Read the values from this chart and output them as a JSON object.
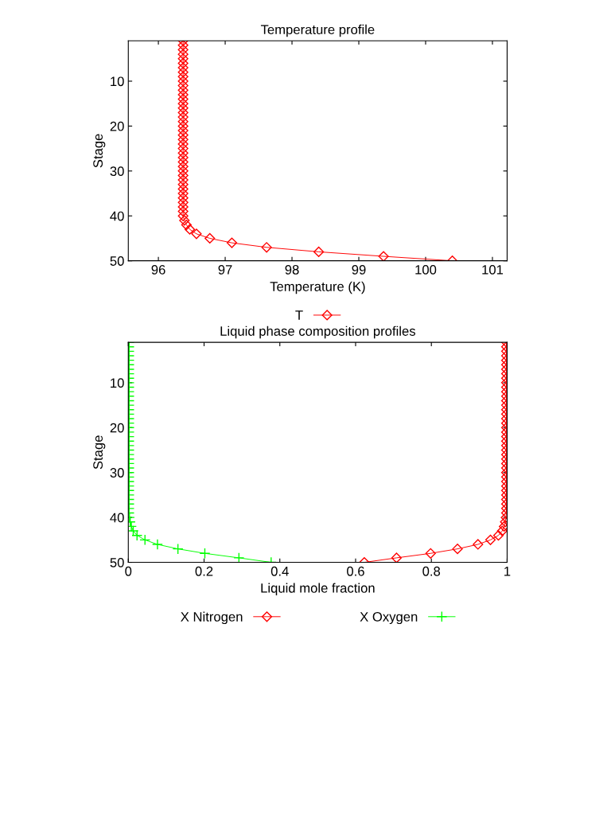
{
  "chart_data": [
    {
      "type": "line",
      "title": "Temperature profile",
      "xlabel": "Temperature (K)",
      "ylabel": "Stage",
      "xlim": [
        95.55,
        101.22
      ],
      "xticks": [
        96,
        97,
        98,
        99,
        100,
        101
      ],
      "ylim": [
        50,
        1
      ],
      "yticks": [
        10,
        20,
        30,
        40,
        50
      ],
      "grid": false,
      "legend": "bottom",
      "marker": "diamond",
      "line_style": "solid",
      "series": [
        {
          "name": "T",
          "color": "#ff0000",
          "x": [
            96.37,
            96.37,
            96.37,
            96.37,
            96.37,
            96.37,
            96.37,
            96.37,
            96.37,
            96.37,
            96.37,
            96.37,
            96.37,
            96.37,
            96.37,
            96.37,
            96.37,
            96.37,
            96.37,
            96.37,
            96.37,
            96.37,
            96.37,
            96.37,
            96.37,
            96.37,
            96.37,
            96.37,
            96.37,
            96.37,
            96.37,
            96.37,
            96.37,
            96.37,
            96.37,
            96.37,
            96.37,
            96.37,
            96.37,
            96.37,
            96.39,
            96.42,
            96.47,
            96.57,
            96.77,
            97.1,
            97.62,
            98.4,
            99.37,
            100.4
          ],
          "values": [
            1,
            2,
            3,
            4,
            5,
            6,
            7,
            8,
            9,
            10,
            11,
            12,
            13,
            14,
            15,
            16,
            17,
            18,
            19,
            20,
            21,
            22,
            23,
            24,
            25,
            26,
            27,
            28,
            29,
            30,
            31,
            32,
            33,
            34,
            35,
            36,
            37,
            38,
            39,
            40,
            41,
            42,
            43,
            44,
            45,
            46,
            47,
            48,
            49,
            50
          ]
        }
      ]
    },
    {
      "type": "line",
      "title": "Liquid phase composition profiles",
      "xlabel": "Liquid mole fraction",
      "ylabel": "Stage",
      "xlim": [
        0,
        1
      ],
      "xticks": [
        0,
        0.2,
        0.4,
        0.6,
        0.8,
        1
      ],
      "ylim": [
        50,
        1
      ],
      "yticks": [
        10,
        20,
        30,
        40,
        50
      ],
      "grid": false,
      "legend": "bottom",
      "line_style": "solid",
      "series": [
        {
          "name": "X Nitrogen",
          "color": "#ff0000",
          "marker": "diamond",
          "x": [
            0.998,
            0.998,
            0.998,
            0.998,
            0.998,
            0.998,
            0.998,
            0.998,
            0.998,
            0.998,
            0.998,
            0.998,
            0.998,
            0.998,
            0.998,
            0.998,
            0.998,
            0.998,
            0.998,
            0.998,
            0.998,
            0.998,
            0.998,
            0.998,
            0.998,
            0.998,
            0.998,
            0.998,
            0.998,
            0.998,
            0.998,
            0.998,
            0.998,
            0.998,
            0.998,
            0.998,
            0.998,
            0.998,
            0.998,
            0.997,
            0.995,
            0.992,
            0.987,
            0.977,
            0.956,
            0.923,
            0.869,
            0.798,
            0.708,
            0.623
          ],
          "values": [
            1,
            2,
            3,
            4,
            5,
            6,
            7,
            8,
            9,
            10,
            11,
            12,
            13,
            14,
            15,
            16,
            17,
            18,
            19,
            20,
            21,
            22,
            23,
            24,
            25,
            26,
            27,
            28,
            29,
            30,
            31,
            32,
            33,
            34,
            35,
            36,
            37,
            38,
            39,
            40,
            41,
            42,
            43,
            44,
            45,
            46,
            47,
            48,
            49,
            50
          ]
        },
        {
          "name": "X Oxygen",
          "color": "#00ff00",
          "marker": "cross",
          "x": [
            0.002,
            0.002,
            0.002,
            0.002,
            0.002,
            0.002,
            0.002,
            0.002,
            0.002,
            0.002,
            0.002,
            0.002,
            0.002,
            0.002,
            0.002,
            0.002,
            0.002,
            0.002,
            0.002,
            0.002,
            0.002,
            0.002,
            0.002,
            0.002,
            0.002,
            0.002,
            0.002,
            0.002,
            0.002,
            0.002,
            0.002,
            0.002,
            0.002,
            0.002,
            0.002,
            0.002,
            0.002,
            0.002,
            0.002,
            0.003,
            0.005,
            0.008,
            0.013,
            0.023,
            0.044,
            0.077,
            0.131,
            0.202,
            0.292,
            0.377
          ],
          "values": [
            1,
            2,
            3,
            4,
            5,
            6,
            7,
            8,
            9,
            10,
            11,
            12,
            13,
            14,
            15,
            16,
            17,
            18,
            19,
            20,
            21,
            22,
            23,
            24,
            25,
            26,
            27,
            28,
            29,
            30,
            31,
            32,
            33,
            34,
            35,
            36,
            37,
            38,
            39,
            40,
            41,
            42,
            43,
            44,
            45,
            46,
            47,
            48,
            49,
            50
          ]
        }
      ]
    }
  ]
}
